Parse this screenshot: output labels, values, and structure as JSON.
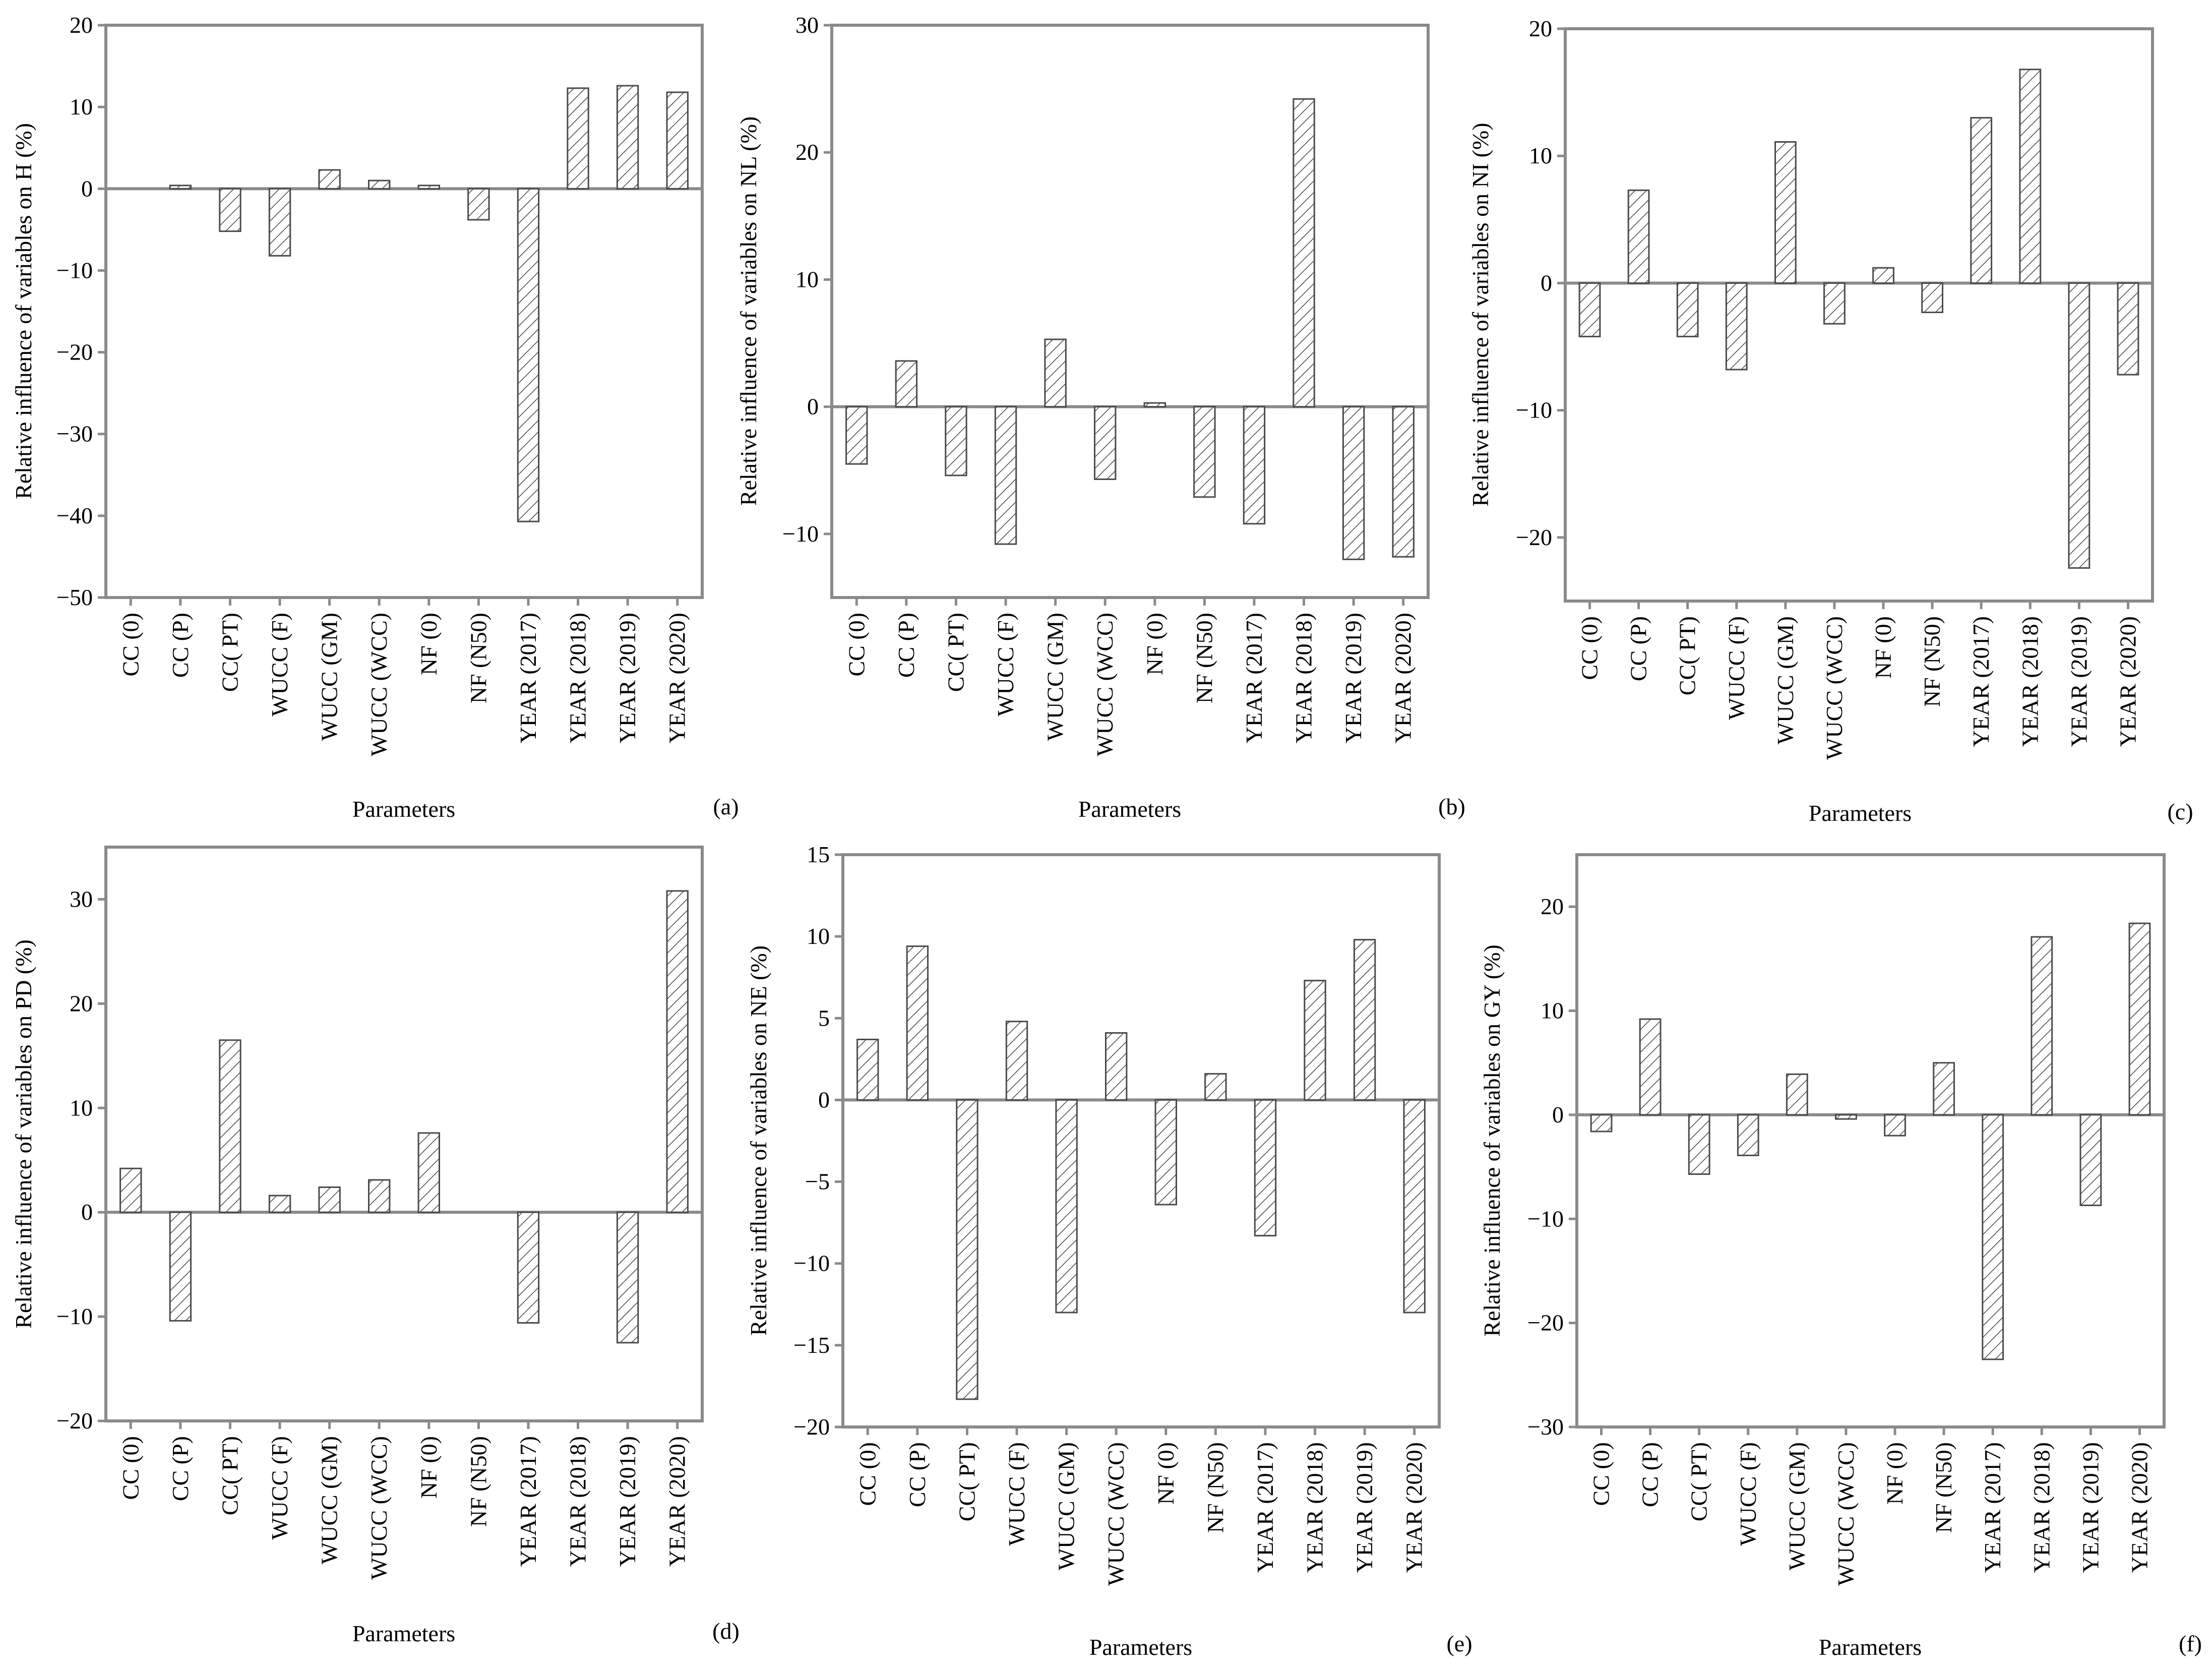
{
  "figure": {
    "categories": [
      "CC (0)",
      "CC (P)",
      "CC( PT)",
      "WUCC (F)",
      "WUCC (GM)",
      "WUCC (WCC)",
      "NF (0)",
      "NF (N50)",
      "YEAR (2017)",
      "YEAR (2018)",
      "YEAR (2019)",
      "YEAR (2020)"
    ],
    "xlabel": "Parameters"
  },
  "chart_data": [
    {
      "panel": "(a)",
      "type": "bar",
      "ylabel": "Relative influence of variables on H (%)",
      "xlabel": "Parameters",
      "ylim": [
        -50,
        20
      ],
      "yticks": [
        20,
        10,
        0,
        -10,
        -20,
        -30,
        -40,
        -50
      ],
      "ytick_labels": [
        "20",
        "10",
        "0",
        "−10",
        "−20",
        "−30",
        "−40",
        "−50"
      ],
      "values": [
        0,
        0.4,
        -5.2,
        -8.2,
        2.3,
        1.0,
        0.4,
        -3.8,
        -40.7,
        12.3,
        12.6,
        11.8
      ]
    },
    {
      "panel": "(b)",
      "type": "bar",
      "ylabel": "Relative influence of variables on NL (%)",
      "xlabel": "Parameters",
      "ylim": [
        -15,
        30
      ],
      "yticks": [
        30,
        20,
        10,
        0,
        -10
      ],
      "ytick_labels": [
        "30",
        "20",
        "10",
        "0",
        "−10"
      ],
      "values": [
        -4.5,
        3.6,
        -5.4,
        -10.8,
        5.3,
        -5.7,
        0.3,
        -7.1,
        -9.2,
        24.2,
        -12.0,
        -11.8
      ]
    },
    {
      "panel": "(c)",
      "type": "bar",
      "ylabel": "Relative influence of variables on NI (%)",
      "xlabel": "Parameters",
      "ylim": [
        -25,
        20
      ],
      "yticks": [
        20,
        10,
        0,
        -10,
        -20
      ],
      "ytick_labels": [
        "20",
        "10",
        "0",
        "−10",
        "−20"
      ],
      "values": [
        -4.2,
        7.3,
        -4.2,
        -6.8,
        11.1,
        -3.2,
        1.2,
        -2.3,
        13.0,
        16.8,
        -22.4,
        -7.2
      ]
    },
    {
      "panel": "(d)",
      "type": "bar",
      "ylabel": "Relative influence of variables on PD (%)",
      "xlabel": "Parameters",
      "ylim": [
        -20,
        35
      ],
      "yticks": [
        30,
        20,
        10,
        0,
        -10,
        -20
      ],
      "ytick_labels": [
        "30",
        "20",
        "10",
        "0",
        "−10",
        "−20"
      ],
      "values": [
        4.2,
        -10.4,
        16.5,
        1.6,
        2.4,
        3.1,
        7.6,
        0,
        -10.6,
        0,
        -12.5,
        30.8
      ]
    },
    {
      "panel": "(e)",
      "type": "bar",
      "ylabel": "Relative influence of variables on NE (%)",
      "xlabel": "Parameters",
      "ylim": [
        -20,
        15
      ],
      "yticks": [
        15,
        10,
        5,
        0,
        -5,
        -10,
        -15,
        -20
      ],
      "ytick_labels": [
        "15",
        "10",
        "5",
        "0",
        "−5",
        "−10",
        "−15",
        "−20"
      ],
      "values": [
        3.7,
        9.4,
        -18.3,
        4.8,
        -13.0,
        4.1,
        -6.4,
        1.6,
        -8.3,
        7.3,
        9.8,
        -13.0
      ]
    },
    {
      "panel": "(f)",
      "type": "bar",
      "ylabel": "Relative influence of variables on GY (%)",
      "xlabel": "Parameters",
      "ylim": [
        -30,
        25
      ],
      "yticks": [
        20,
        10,
        0,
        -10,
        -20,
        -30
      ],
      "ytick_labels": [
        "20",
        "10",
        "0",
        "−10",
        "−20",
        "−30"
      ],
      "values": [
        -1.6,
        9.2,
        -5.7,
        -3.9,
        3.9,
        -0.4,
        -2.0,
        5.0,
        -23.5,
        17.1,
        -8.7,
        18.4
      ]
    }
  ]
}
